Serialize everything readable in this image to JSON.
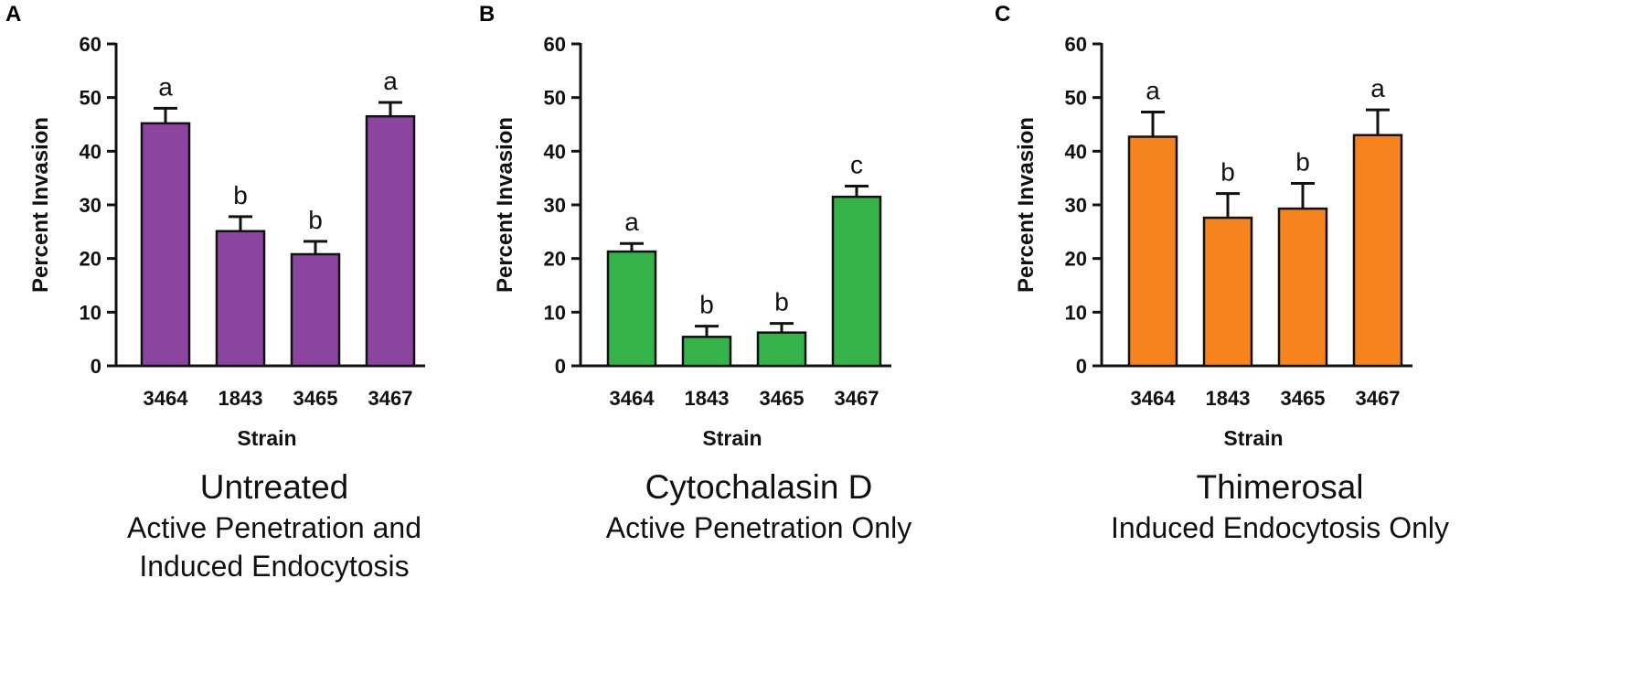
{
  "chart_data": [
    {
      "type": "bar",
      "panel_label": "A",
      "categories": [
        "3464",
        "1843",
        "3465",
        "3467"
      ],
      "values": [
        45.2,
        25.1,
        20.8,
        46.5
      ],
      "errors": [
        2.8,
        2.7,
        2.4,
        2.6
      ],
      "significance": [
        "a",
        "b",
        "b",
        "a"
      ],
      "bar_color": "#8b44a0",
      "xlabel": "Strain",
      "ylabel": "Percent Invasion",
      "ylim": [
        0,
        60
      ],
      "yticks": [
        "0",
        "10",
        "20",
        "30",
        "40",
        "50",
        "60"
      ],
      "caption_title": "Untreated",
      "caption_lines": [
        "Active Penetration and",
        "Induced Endocytosis"
      ]
    },
    {
      "type": "bar",
      "panel_label": "B",
      "categories": [
        "3464",
        "1843",
        "3465",
        "3467"
      ],
      "values": [
        21.3,
        5.4,
        6.2,
        31.5
      ],
      "errors": [
        1.5,
        2.0,
        1.7,
        2.0
      ],
      "significance": [
        "a",
        "b",
        "b",
        "c"
      ],
      "bar_color": "#35b34a",
      "xlabel": "Strain",
      "ylabel": "Percent Invasion",
      "ylim": [
        0,
        60
      ],
      "yticks": [
        "0",
        "10",
        "20",
        "30",
        "40",
        "50",
        "60"
      ],
      "caption_title": "Cytochalasin D",
      "caption_lines": [
        "Active Penetration Only"
      ]
    },
    {
      "type": "bar",
      "panel_label": "C",
      "categories": [
        "3464",
        "1843",
        "3465",
        "3467"
      ],
      "values": [
        42.7,
        27.6,
        29.3,
        43.0
      ],
      "errors": [
        4.6,
        4.5,
        4.7,
        4.7
      ],
      "significance": [
        "a",
        "b",
        "b",
        "a"
      ],
      "bar_color": "#f5841f",
      "xlabel": "Strain",
      "ylabel": "Percent Invasion",
      "ylim": [
        0,
        60
      ],
      "yticks": [
        "0",
        "10",
        "20",
        "30",
        "40",
        "50",
        "60"
      ],
      "caption_title": "Thimerosal",
      "caption_lines": [
        "Induced Endocytosis Only"
      ]
    }
  ]
}
